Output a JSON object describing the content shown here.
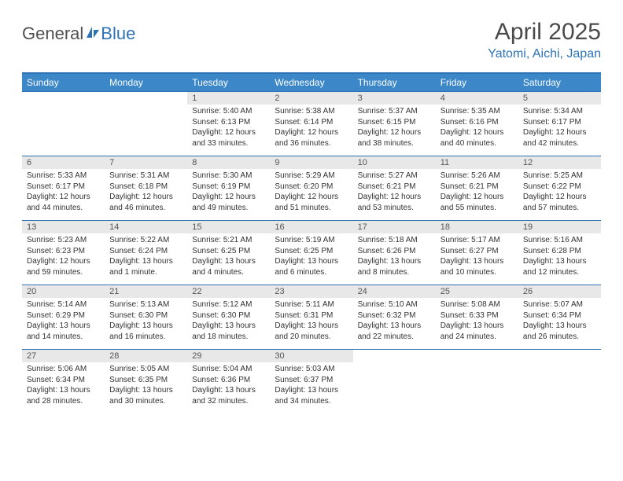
{
  "logo": {
    "general": "General",
    "blue": "Blue"
  },
  "title": "April 2025",
  "location": "Yatomi, Aichi, Japan",
  "colors": {
    "header_bg": "#3b87c8",
    "border": "#2d72b5",
    "daynum_bg": "#e8e8e8",
    "text": "#333333"
  },
  "weekdays": [
    "Sunday",
    "Monday",
    "Tuesday",
    "Wednesday",
    "Thursday",
    "Friday",
    "Saturday"
  ],
  "weeks": [
    [
      null,
      null,
      {
        "n": "1",
        "sr": "Sunrise: 5:40 AM",
        "ss": "Sunset: 6:13 PM",
        "dl": "Daylight: 12 hours and 33 minutes."
      },
      {
        "n": "2",
        "sr": "Sunrise: 5:38 AM",
        "ss": "Sunset: 6:14 PM",
        "dl": "Daylight: 12 hours and 36 minutes."
      },
      {
        "n": "3",
        "sr": "Sunrise: 5:37 AM",
        "ss": "Sunset: 6:15 PM",
        "dl": "Daylight: 12 hours and 38 minutes."
      },
      {
        "n": "4",
        "sr": "Sunrise: 5:35 AM",
        "ss": "Sunset: 6:16 PM",
        "dl": "Daylight: 12 hours and 40 minutes."
      },
      {
        "n": "5",
        "sr": "Sunrise: 5:34 AM",
        "ss": "Sunset: 6:17 PM",
        "dl": "Daylight: 12 hours and 42 minutes."
      }
    ],
    [
      {
        "n": "6",
        "sr": "Sunrise: 5:33 AM",
        "ss": "Sunset: 6:17 PM",
        "dl": "Daylight: 12 hours and 44 minutes."
      },
      {
        "n": "7",
        "sr": "Sunrise: 5:31 AM",
        "ss": "Sunset: 6:18 PM",
        "dl": "Daylight: 12 hours and 46 minutes."
      },
      {
        "n": "8",
        "sr": "Sunrise: 5:30 AM",
        "ss": "Sunset: 6:19 PM",
        "dl": "Daylight: 12 hours and 49 minutes."
      },
      {
        "n": "9",
        "sr": "Sunrise: 5:29 AM",
        "ss": "Sunset: 6:20 PM",
        "dl": "Daylight: 12 hours and 51 minutes."
      },
      {
        "n": "10",
        "sr": "Sunrise: 5:27 AM",
        "ss": "Sunset: 6:21 PM",
        "dl": "Daylight: 12 hours and 53 minutes."
      },
      {
        "n": "11",
        "sr": "Sunrise: 5:26 AM",
        "ss": "Sunset: 6:21 PM",
        "dl": "Daylight: 12 hours and 55 minutes."
      },
      {
        "n": "12",
        "sr": "Sunrise: 5:25 AM",
        "ss": "Sunset: 6:22 PM",
        "dl": "Daylight: 12 hours and 57 minutes."
      }
    ],
    [
      {
        "n": "13",
        "sr": "Sunrise: 5:23 AM",
        "ss": "Sunset: 6:23 PM",
        "dl": "Daylight: 12 hours and 59 minutes."
      },
      {
        "n": "14",
        "sr": "Sunrise: 5:22 AM",
        "ss": "Sunset: 6:24 PM",
        "dl": "Daylight: 13 hours and 1 minute."
      },
      {
        "n": "15",
        "sr": "Sunrise: 5:21 AM",
        "ss": "Sunset: 6:25 PM",
        "dl": "Daylight: 13 hours and 4 minutes."
      },
      {
        "n": "16",
        "sr": "Sunrise: 5:19 AM",
        "ss": "Sunset: 6:25 PM",
        "dl": "Daylight: 13 hours and 6 minutes."
      },
      {
        "n": "17",
        "sr": "Sunrise: 5:18 AM",
        "ss": "Sunset: 6:26 PM",
        "dl": "Daylight: 13 hours and 8 minutes."
      },
      {
        "n": "18",
        "sr": "Sunrise: 5:17 AM",
        "ss": "Sunset: 6:27 PM",
        "dl": "Daylight: 13 hours and 10 minutes."
      },
      {
        "n": "19",
        "sr": "Sunrise: 5:16 AM",
        "ss": "Sunset: 6:28 PM",
        "dl": "Daylight: 13 hours and 12 minutes."
      }
    ],
    [
      {
        "n": "20",
        "sr": "Sunrise: 5:14 AM",
        "ss": "Sunset: 6:29 PM",
        "dl": "Daylight: 13 hours and 14 minutes."
      },
      {
        "n": "21",
        "sr": "Sunrise: 5:13 AM",
        "ss": "Sunset: 6:30 PM",
        "dl": "Daylight: 13 hours and 16 minutes."
      },
      {
        "n": "22",
        "sr": "Sunrise: 5:12 AM",
        "ss": "Sunset: 6:30 PM",
        "dl": "Daylight: 13 hours and 18 minutes."
      },
      {
        "n": "23",
        "sr": "Sunrise: 5:11 AM",
        "ss": "Sunset: 6:31 PM",
        "dl": "Daylight: 13 hours and 20 minutes."
      },
      {
        "n": "24",
        "sr": "Sunrise: 5:10 AM",
        "ss": "Sunset: 6:32 PM",
        "dl": "Daylight: 13 hours and 22 minutes."
      },
      {
        "n": "25",
        "sr": "Sunrise: 5:08 AM",
        "ss": "Sunset: 6:33 PM",
        "dl": "Daylight: 13 hours and 24 minutes."
      },
      {
        "n": "26",
        "sr": "Sunrise: 5:07 AM",
        "ss": "Sunset: 6:34 PM",
        "dl": "Daylight: 13 hours and 26 minutes."
      }
    ],
    [
      {
        "n": "27",
        "sr": "Sunrise: 5:06 AM",
        "ss": "Sunset: 6:34 PM",
        "dl": "Daylight: 13 hours and 28 minutes."
      },
      {
        "n": "28",
        "sr": "Sunrise: 5:05 AM",
        "ss": "Sunset: 6:35 PM",
        "dl": "Daylight: 13 hours and 30 minutes."
      },
      {
        "n": "29",
        "sr": "Sunrise: 5:04 AM",
        "ss": "Sunset: 6:36 PM",
        "dl": "Daylight: 13 hours and 32 minutes."
      },
      {
        "n": "30",
        "sr": "Sunrise: 5:03 AM",
        "ss": "Sunset: 6:37 PM",
        "dl": "Daylight: 13 hours and 34 minutes."
      },
      null,
      null,
      null
    ]
  ]
}
